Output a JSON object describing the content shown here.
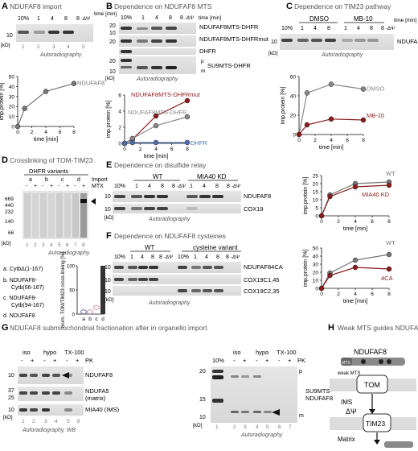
{
  "panels": {
    "A": {
      "letter": "A",
      "title": "NDUFAF8 import"
    },
    "B": {
      "letter": "B",
      "title": "Dependence on NDUFAF8 MTS"
    },
    "C": {
      "letter": "C",
      "title": "Dependence on TIM23 pathway"
    },
    "D": {
      "letter": "D",
      "title": "Crosslinking of TOM-TIM23"
    },
    "E": {
      "letter": "E",
      "title": "Dependence on disulfide relay"
    },
    "F": {
      "letter": "F",
      "title": "Dependence on NDUFAF8 cysteines"
    },
    "G": {
      "letter": "G",
      "title": "NDUFAF8 submitochondrial fractionation after in organello import"
    },
    "H": {
      "letter": "H",
      "title": "Weak MTS guides NDUFAF8 to the matrix"
    }
  },
  "blots": {
    "A": {
      "lanes": [
        "10%",
        "1",
        "4",
        "8",
        "8"
      ],
      "lane_nums": [
        "1",
        "2",
        "3",
        "4",
        "5"
      ],
      "psi": "-ΔΨ",
      "time_unit": "time [min]",
      "kd_label": "[kD]",
      "marker": "10",
      "footer": "Autoradiography"
    },
    "B": {
      "lanes": [
        "10%",
        "1",
        "4",
        "8",
        "8"
      ],
      "lane_nums": [
        "1",
        "2",
        "3",
        "4",
        "5"
      ],
      "psi": "-ΔΨ",
      "time_unit": "time [min]",
      "kd_label": "[kD]",
      "markers": [
        "20",
        "10",
        "20",
        "20",
        "10"
      ],
      "labels": [
        "NDUFAF8MTS-DHFR",
        "NDUFAF8MTS-DHFRmut",
        "DHFR",
        "SU9MTS-DHFR"
      ],
      "pm": [
        "p",
        "m"
      ],
      "footer": "Autoradiography"
    },
    "C": {
      "conds": [
        "DMSO",
        "MB-10"
      ],
      "lanes": [
        "10%",
        "1",
        "4",
        "8",
        "1",
        "4",
        "8",
        "8"
      ],
      "psi": "-ΔΨ",
      "time_unit": "time [min]",
      "kd_label": "[kD]",
      "marker": "10",
      "label": "NDUFAF8",
      "footer": "Autoradiography"
    },
    "D": {
      "header": "DHFR variants",
      "variant_letters": [
        "a",
        "b",
        "c",
        "d"
      ],
      "import_label": "Import",
      "mtx_label": "MTX",
      "mtx": [
        "-",
        "+",
        "-",
        "+",
        "-",
        "+",
        "-",
        "+"
      ],
      "markers": [
        "669",
        "440",
        "232",
        "140",
        "66"
      ],
      "kd_label": "[kD]",
      "lane_nums": [
        "1",
        "2",
        "3",
        "4",
        "5",
        "6",
        "7",
        "8"
      ],
      "footer": "Autoradiography",
      "legend": [
        "a. CytbΔ(1-167)",
        "b. NDUFAF8-",
        "Cytb(66-167)",
        "c. NDUFAF8-",
        "Cytb(94-167)",
        "d. NDUFAF8"
      ]
    },
    "E": {
      "conds": [
        "WT",
        "MIA40 KD"
      ],
      "lanes": [
        "10%",
        "1",
        "4",
        "8",
        "8",
        "1",
        "4",
        "8",
        "8"
      ],
      "psi": "-ΔΨ",
      "kd_label": "[kD]",
      "marker": "10",
      "labels": [
        "NDUFAF8",
        "COX19"
      ],
      "footer": "Autoradiography"
    },
    "F": {
      "conds": [
        "WT",
        "cysteine variant"
      ],
      "lanes": [
        "10%",
        "1",
        "4",
        "8",
        "8",
        "10%",
        "1",
        "4",
        "8",
        "8"
      ],
      "psi": "-ΔΨ",
      "kd_label": "[kD]",
      "marker": "10",
      "labels": [
        "NDUFAF84CA",
        "COX19C1,45",
        "COX19C2,35"
      ],
      "footer": "Autoradiography"
    },
    "G1": {
      "conds": [
        "iso",
        "hypo",
        "TX-100"
      ],
      "pk_label": "PK",
      "pk": [
        "-",
        "+",
        "-",
        "+",
        "-",
        "+"
      ],
      "lane_nums": [
        "1",
        "2",
        "3",
        "4",
        "5",
        "6"
      ],
      "kd_label": "[kD]",
      "markers": [
        "10",
        "37",
        "25",
        "10"
      ],
      "labels": [
        "NDUFAF8",
        "NDUFA5",
        "(matrix)",
        "MIA40 (IMS)"
      ],
      "footer": "Autoradiography, WB"
    },
    "G2": {
      "conds": [
        "iso",
        "hypo",
        "TX-100"
      ],
      "pk_label": "PK",
      "pk": [
        "-",
        "+",
        "-",
        "+",
        "-",
        "+"
      ],
      "lane_nums": [
        "1",
        "2",
        "3",
        "4",
        "5",
        "6",
        "7"
      ],
      "first": "10%",
      "kd_label": "[kD]",
      "markers": [
        "20",
        "15",
        "10"
      ],
      "labels": [
        "SU9MTS-",
        "NDUFAF8"
      ],
      "pm": [
        "p",
        "m"
      ],
      "footer": "Autoradiography"
    },
    "H": {
      "protein": "NDUFAF8",
      "mts": "MTS",
      "weak_mts": "weak MTS",
      "tom": "TOM",
      "ims": "IMS",
      "tim": "TIM23",
      "psi": "ΔΨ",
      "matrix": "Matrix"
    }
  },
  "chart_data": [
    {
      "panel": "A",
      "type": "line",
      "xlabel": "time [min]",
      "ylabel": "imp.protein [%]",
      "xlim": [
        0,
        8
      ],
      "ylim": [
        0,
        50
      ],
      "xticks": [
        0,
        2,
        4,
        6,
        8
      ],
      "yticks": [
        0,
        10,
        20,
        30,
        40,
        50
      ],
      "series": [
        {
          "name": "NDUFAF8",
          "color": "#777777",
          "x": [
            0,
            1,
            4,
            8
          ],
          "y": [
            0,
            18,
            35,
            43
          ]
        }
      ]
    },
    {
      "panel": "B",
      "type": "line",
      "xlabel": "time [min]",
      "ylabel": "imp.protein [%]",
      "xlim": [
        0,
        8
      ],
      "ylim": [
        0,
        6
      ],
      "xticks": [
        0,
        2,
        4,
        6,
        8
      ],
      "yticks": [
        0,
        2,
        4,
        6
      ],
      "series": [
        {
          "name": "NDUFAF8MTS-DHFRmut",
          "color": "#8b1a1a",
          "x": [
            0,
            1,
            4,
            8
          ],
          "y": [
            0,
            0.5,
            3.4,
            5.3
          ]
        },
        {
          "name": "NDUFAF8MTS-DHFR",
          "color": "#888888",
          "x": [
            0,
            1,
            4,
            8
          ],
          "y": [
            0,
            0.6,
            2.2,
            3.3
          ]
        },
        {
          "name": "DHFR",
          "color": "#4d6fb0",
          "x": [
            0,
            1,
            4,
            8
          ],
          "y": [
            0,
            0.1,
            0.1,
            0.1
          ]
        }
      ]
    },
    {
      "panel": "C",
      "type": "line",
      "xlabel": "time [min]",
      "ylabel": "imp.protein [%]",
      "xlim": [
        0,
        8
      ],
      "ylim": [
        0,
        60
      ],
      "xticks": [
        0,
        2,
        4,
        6,
        8
      ],
      "yticks": [
        0,
        20,
        40,
        60
      ],
      "series": [
        {
          "name": "DMSO",
          "color": "#888888",
          "x": [
            0,
            1,
            4,
            8
          ],
          "y": [
            0,
            43,
            52,
            47
          ]
        },
        {
          "name": "MB-10",
          "color": "#8b1a1a",
          "x": [
            0,
            1,
            4,
            8
          ],
          "y": [
            0,
            10,
            16,
            15
          ]
        }
      ]
    },
    {
      "panel": "D",
      "type": "bar",
      "ylabel": "norm. TOM/TIM23 cross-linking [%]",
      "categories": [
        "a",
        "b",
        "c",
        "d"
      ],
      "ylim": [
        0,
        100
      ],
      "yticks": [
        0,
        50,
        100
      ],
      "values": [
        3,
        3,
        12,
        100
      ],
      "colors": [
        "#6b7cb8",
        "#d59ab0",
        "#d59ab0",
        "#333333"
      ]
    },
    {
      "panel": "E",
      "type": "line",
      "xlabel": "time [min]",
      "ylabel": "imp.protein [%]",
      "xlim": [
        0,
        8
      ],
      "ylim": [
        0,
        25
      ],
      "xticks": [
        0,
        2,
        4,
        6,
        8
      ],
      "yticks": [
        0,
        5,
        10,
        15,
        20,
        25
      ],
      "series": [
        {
          "name": "WT",
          "color": "#777777",
          "x": [
            0,
            1,
            4,
            8
          ],
          "y": [
            0,
            13,
            20,
            21
          ]
        },
        {
          "name": "MIA40 KD",
          "color": "#8b1a1a",
          "x": [
            0,
            1,
            4,
            8
          ],
          "y": [
            0,
            12,
            18,
            19
          ]
        }
      ]
    },
    {
      "panel": "F",
      "type": "line",
      "xlabel": "time [min]",
      "ylabel": "imp.protein [%]",
      "xlim": [
        0,
        8
      ],
      "ylim": [
        0,
        50
      ],
      "xticks": [
        0,
        2,
        4,
        6,
        8
      ],
      "yticks": [
        0,
        10,
        20,
        30,
        40,
        50
      ],
      "series": [
        {
          "name": "WT",
          "color": "#777777",
          "x": [
            0,
            1,
            4,
            8
          ],
          "y": [
            0,
            19,
            35,
            42
          ]
        },
        {
          "name": "4CA",
          "color": "#8b1a1a",
          "x": [
            0,
            1,
            4,
            8
          ],
          "y": [
            0,
            16,
            26,
            24
          ]
        }
      ]
    }
  ]
}
